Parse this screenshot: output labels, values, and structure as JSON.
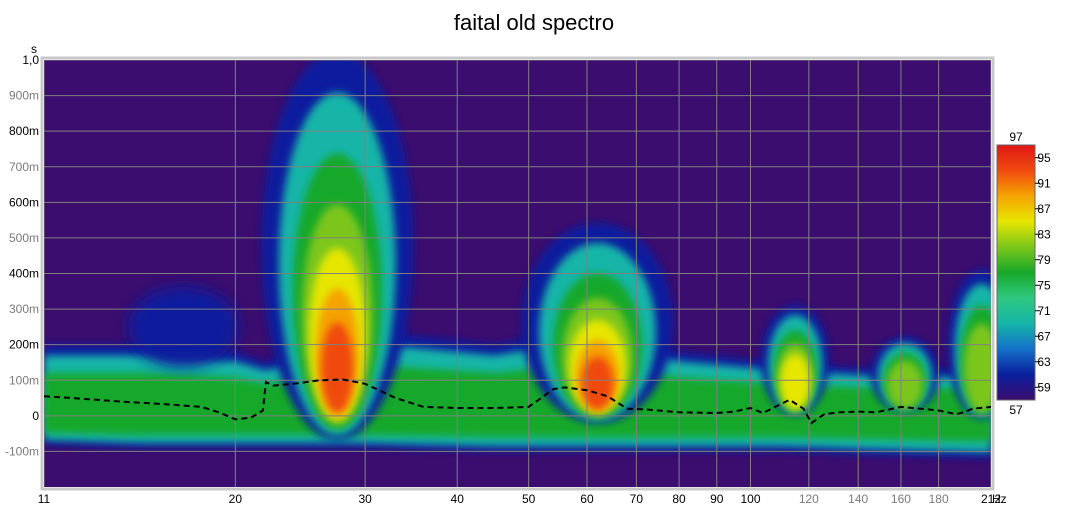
{
  "chart_data": {
    "type": "heatmap",
    "title": "faital old spectro",
    "xlabel": "Hz",
    "ylabel": "s",
    "x_scale": "log",
    "xlim": [
      11,
      212
    ],
    "ylim": [
      -0.2,
      1.0
    ],
    "grid": true,
    "x_ticks": [
      {
        "value": 11,
        "label": "11",
        "muted": false
      },
      {
        "value": 20,
        "label": "20",
        "muted": false
      },
      {
        "value": 30,
        "label": "30",
        "muted": false
      },
      {
        "value": 40,
        "label": "40",
        "muted": false
      },
      {
        "value": 50,
        "label": "50",
        "muted": false
      },
      {
        "value": 60,
        "label": "60",
        "muted": false
      },
      {
        "value": 70,
        "label": "70",
        "muted": false
      },
      {
        "value": 80,
        "label": "80",
        "muted": false
      },
      {
        "value": 90,
        "label": "90",
        "muted": false
      },
      {
        "value": 100,
        "label": "100",
        "muted": false
      },
      {
        "value": 120,
        "label": "120",
        "muted": true
      },
      {
        "value": 140,
        "label": "140",
        "muted": true
      },
      {
        "value": 160,
        "label": "160",
        "muted": true
      },
      {
        "value": 180,
        "label": "180",
        "muted": true
      },
      {
        "value": 212,
        "label": "212",
        "muted": false
      }
    ],
    "y_ticks": [
      {
        "value": 1.0,
        "label": "1,0",
        "muted": false
      },
      {
        "value": 0.9,
        "label": "900m",
        "muted": true
      },
      {
        "value": 0.8,
        "label": "800m",
        "muted": false
      },
      {
        "value": 0.7,
        "label": "700m",
        "muted": true
      },
      {
        "value": 0.6,
        "label": "600m",
        "muted": false
      },
      {
        "value": 0.5,
        "label": "500m",
        "muted": true
      },
      {
        "value": 0.4,
        "label": "400m",
        "muted": false
      },
      {
        "value": 0.3,
        "label": "300m",
        "muted": true
      },
      {
        "value": 0.2,
        "label": "200m",
        "muted": false
      },
      {
        "value": 0.1,
        "label": "100m",
        "muted": true
      },
      {
        "value": 0.0,
        "label": "0",
        "muted": false
      },
      {
        "value": -0.1,
        "label": "-100m",
        "muted": true
      }
    ],
    "colorbar": {
      "min": 57,
      "max": 97,
      "labels": [
        "97",
        "95",
        "91",
        "87",
        "83",
        "79",
        "75",
        "71",
        "67",
        "63",
        "59",
        "57"
      ],
      "colors": [
        "#3a0d6e",
        "#0b1f9e",
        "#1370c8",
        "#15b5a8",
        "#2fc880",
        "#18a82a",
        "#7cc61a",
        "#e6e600",
        "#f5a300",
        "#f04a10",
        "#e01616"
      ]
    },
    "background_color": "#3a0d6e",
    "ridges": [
      {
        "name": "band",
        "x": [
          11,
          15,
          20,
          22,
          30,
          45,
          60,
          80,
          110,
          150,
          212
        ],
        "y_low": [
          -0.08,
          -0.09,
          -0.09,
          -0.09,
          -0.09,
          -0.1,
          -0.1,
          -0.1,
          -0.1,
          -0.11,
          -0.12
        ],
        "y_high": [
          0.2,
          0.2,
          0.18,
          0.15,
          0.24,
          0.2,
          0.25,
          0.18,
          0.15,
          0.13,
          0.13
        ]
      },
      {
        "name": "peak-28Hz",
        "freq": 27.5,
        "time_max": 1.0,
        "level": 95
      },
      {
        "name": "peak-62Hz",
        "freq": 62,
        "time_max": 0.52,
        "level": 96
      },
      {
        "name": "peak-115Hz",
        "freq": 115,
        "time_max": 0.29,
        "level": 84
      },
      {
        "name": "peak-160Hz",
        "freq": 162,
        "time_max": 0.2,
        "level": 82
      },
      {
        "name": "peak-205Hz",
        "freq": 206,
        "time_max": 0.39,
        "level": 72
      }
    ],
    "series": [
      {
        "line_style": "dashed",
        "color": "#000000",
        "x": [
          11,
          12,
          14,
          16,
          18,
          19,
          20,
          21,
          21.8,
          22,
          22.5,
          24,
          26,
          28,
          30,
          33,
          36,
          40,
          45,
          50,
          52,
          54,
          56,
          60,
          64,
          68,
          72,
          80,
          90,
          95,
          100,
          104,
          108,
          113,
          118,
          121,
          126,
          132,
          140,
          148,
          160,
          170,
          180,
          190,
          195,
          200,
          212
        ],
        "y": [
          0.055,
          0.05,
          0.04,
          0.033,
          0.025,
          0.01,
          -0.01,
          -0.005,
          0.015,
          0.095,
          0.085,
          0.09,
          0.1,
          0.102,
          0.09,
          0.05,
          0.025,
          0.022,
          0.022,
          0.025,
          0.05,
          0.075,
          0.08,
          0.072,
          0.055,
          0.02,
          0.018,
          0.01,
          0.008,
          0.012,
          0.022,
          0.008,
          0.025,
          0.045,
          0.02,
          -0.02,
          0.005,
          0.01,
          0.012,
          0.01,
          0.025,
          0.02,
          0.015,
          0.005,
          0.01,
          0.02,
          0.025
        ]
      }
    ]
  }
}
